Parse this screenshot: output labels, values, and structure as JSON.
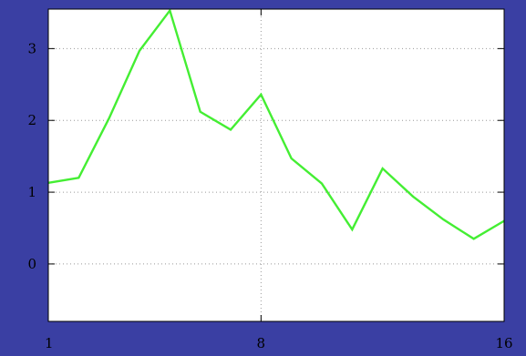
{
  "colors": {
    "page_background": "#3a3fa3",
    "plot_background": "#ffffff",
    "line": "#44ee33",
    "grid": "#9a9a9a",
    "axis": "#000000"
  },
  "chart_data": {
    "type": "line",
    "title": "",
    "xlabel": "",
    "ylabel": "",
    "grid": true,
    "xlim": [
      1,
      16
    ],
    "ylim": [
      -0.8,
      3.55
    ],
    "x_ticks": [
      1,
      8,
      16
    ],
    "y_ticks": [
      0,
      1,
      2,
      3
    ],
    "series": [
      {
        "x": [
          1,
          2,
          3,
          4,
          5,
          6,
          7,
          8,
          9,
          10,
          11,
          12,
          13,
          14,
          15,
          16
        ],
        "y": [
          1.13,
          1.2,
          2.03,
          2.97,
          3.53,
          2.12,
          1.87,
          2.36,
          1.47,
          1.12,
          0.48,
          1.33,
          0.94,
          0.62,
          0.35,
          0.6
        ]
      }
    ]
  }
}
